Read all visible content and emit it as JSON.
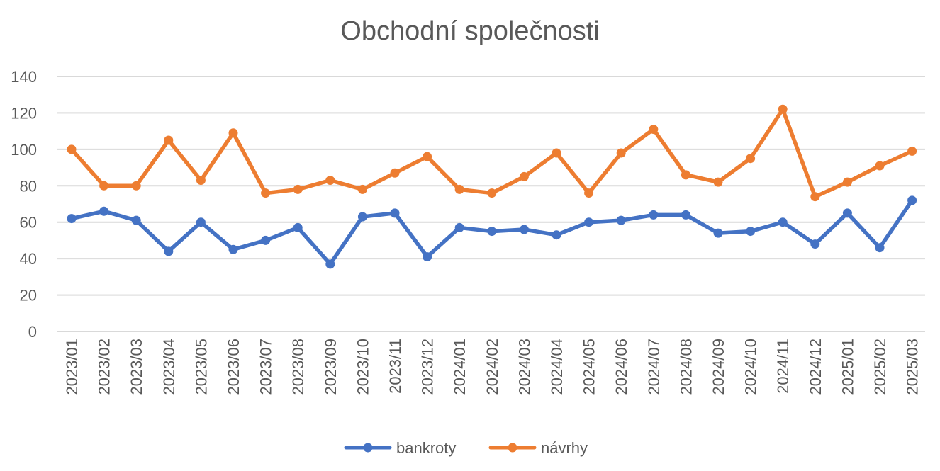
{
  "chart_data": {
    "type": "line",
    "title": "Obchodní společnosti",
    "xlabel": "",
    "ylabel": "",
    "ylim": [
      0,
      140
    ],
    "yticks": [
      0,
      20,
      40,
      60,
      80,
      100,
      120,
      140
    ],
    "grid": true,
    "legend_position": "bottom",
    "categories": [
      "2023/01",
      "2023/02",
      "2023/03",
      "2023/04",
      "2023/05",
      "2023/06",
      "2023/07",
      "2023/08",
      "2023/09",
      "2023/10",
      "2023/11",
      "2023/12",
      "2024/01",
      "2024/02",
      "2024/03",
      "2024/04",
      "2024/05",
      "2024/06",
      "2024/07",
      "2024/08",
      "2024/09",
      "2024/10",
      "2024/11",
      "2024/12",
      "2025/01",
      "2025/02",
      "2025/03"
    ],
    "series": [
      {
        "name": "bankroty",
        "color": "#4472C4",
        "values": [
          62,
          66,
          61,
          44,
          60,
          45,
          50,
          57,
          37,
          63,
          65,
          41,
          57,
          55,
          56,
          53,
          60,
          61,
          64,
          64,
          54,
          55,
          60,
          48,
          65,
          46,
          72
        ]
      },
      {
        "name": "návrhy",
        "color": "#ED7D31",
        "values": [
          100,
          80,
          80,
          105,
          83,
          109,
          76,
          78,
          83,
          78,
          87,
          96,
          78,
          76,
          85,
          98,
          76,
          98,
          111,
          86,
          82,
          95,
          122,
          74,
          82,
          91,
          99
        ]
      }
    ]
  }
}
